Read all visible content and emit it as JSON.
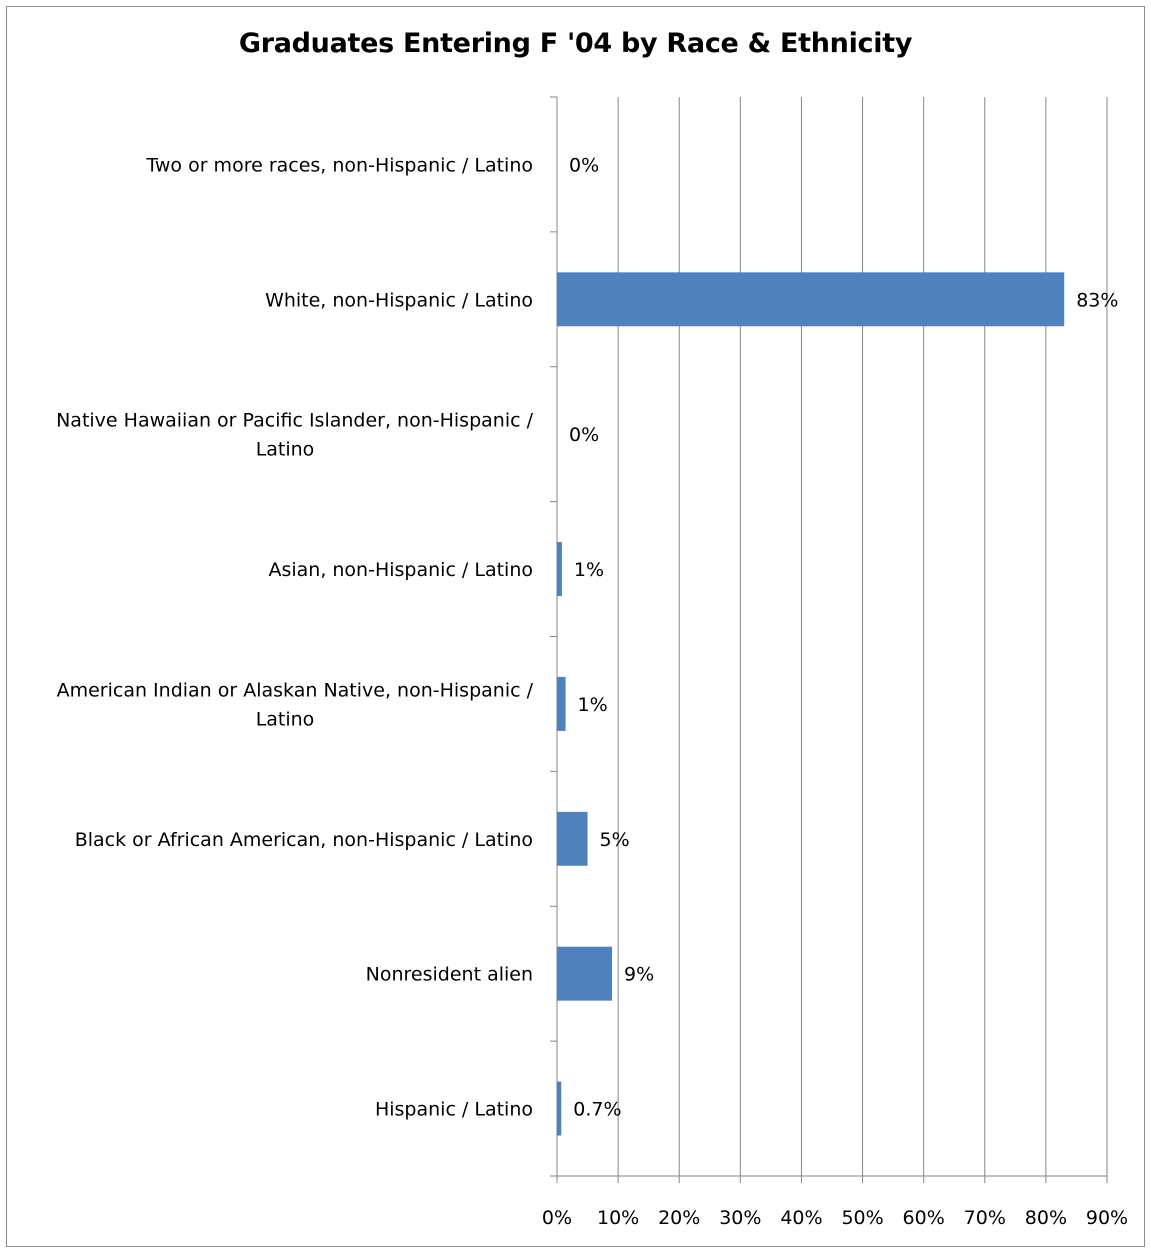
{
  "chart_data": {
    "type": "bar",
    "orientation": "horizontal",
    "title": "Graduates Entering F '04 by Race & Ethnicity",
    "categories": [
      "Hispanic / Latino",
      "Nonresident alien",
      "Black or African American, non-Hispanic / Latino",
      "American Indian or Alaskan Native, non-Hispanic / Latino",
      "Asian, non-Hispanic / Latino",
      "Native Hawaiian or Pacific Islander, non-Hispanic / Latino",
      "White, non-Hispanic / Latino",
      "Two or more races, non-Hispanic / Latino"
    ],
    "category_label_lines": [
      [
        "Hispanic / Latino"
      ],
      [
        "Nonresident alien"
      ],
      [
        "Black or African American, non-Hispanic / Latino"
      ],
      [
        "American Indian or Alaskan Native, non-Hispanic /",
        "Latino"
      ],
      [
        "Asian, non-Hispanic / Latino"
      ],
      [
        "Native Hawaiian or Pacific Islander, non-Hispanic /",
        "Latino"
      ],
      [
        "White, non-Hispanic / Latino"
      ],
      [
        "Two or more races, non-Hispanic / Latino"
      ]
    ],
    "values": [
      0.7,
      9,
      5,
      1.4,
      0.8,
      0,
      83,
      0
    ],
    "data_labels": [
      "0.7%",
      "9%",
      "5%",
      "1%",
      "1%",
      "0%",
      "83%",
      "0%"
    ],
    "xlim": [
      0,
      90
    ],
    "x_ticks": [
      "0%",
      "10%",
      "20%",
      "30%",
      "40%",
      "50%",
      "60%",
      "70%",
      "80%",
      "90%"
    ],
    "grid": "vertical",
    "legend": "none",
    "bar_color": "#4f81bd",
    "grid_color": "#868686"
  }
}
